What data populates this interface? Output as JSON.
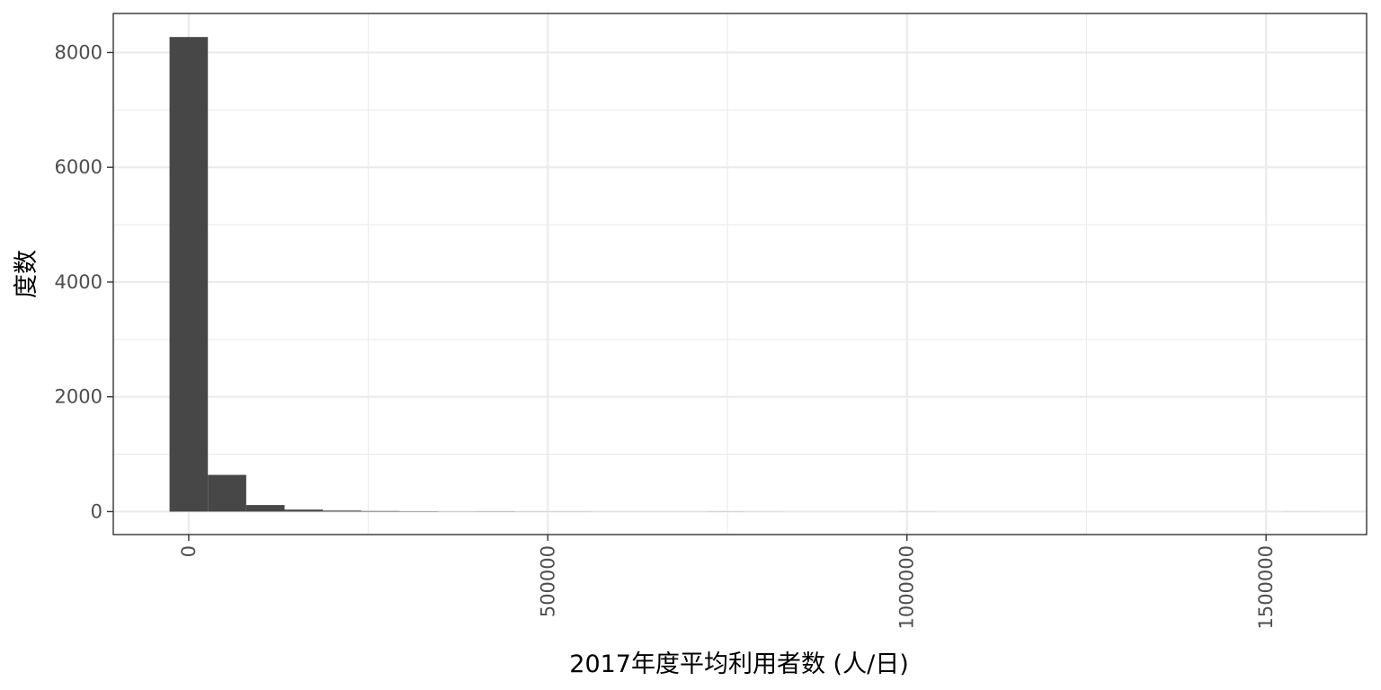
{
  "chart_data": {
    "type": "bar",
    "subtype": "histogram",
    "xlabel": "2017年度平均利用者数 (人/日)",
    "ylabel": "度数",
    "x_ticks": [
      0,
      500000,
      1000000,
      1500000
    ],
    "y_ticks": [
      0,
      2000,
      4000,
      6000,
      8000
    ],
    "xlim": [
      -105000,
      1640000
    ],
    "ylim": [
      -400,
      8680
    ],
    "bin_width": 53400,
    "bins": [
      {
        "start": -26700,
        "end": 26700,
        "count": 8270
      },
      {
        "start": 26700,
        "end": 80100,
        "count": 640
      },
      {
        "start": 80100,
        "end": 133500,
        "count": 115
      },
      {
        "start": 133500,
        "end": 186900,
        "count": 35
      },
      {
        "start": 186900,
        "end": 240300,
        "count": 18
      },
      {
        "start": 240300,
        "end": 293700,
        "count": 10
      },
      {
        "start": 293700,
        "end": 347100,
        "count": 6
      },
      {
        "start": 347100,
        "end": 400500,
        "count": 3
      },
      {
        "start": 400500,
        "end": 453900,
        "count": 4
      },
      {
        "start": 453900,
        "end": 507300,
        "count": 2
      },
      {
        "start": 507300,
        "end": 560700,
        "count": 2
      },
      {
        "start": 560700,
        "end": 614100,
        "count": 1
      },
      {
        "start": 614100,
        "end": 667500,
        "count": 1
      },
      {
        "start": 667500,
        "end": 720900,
        "count": 1
      },
      {
        "start": 720900,
        "end": 774300,
        "count": 2
      },
      {
        "start": 774300,
        "end": 827700,
        "count": 1
      },
      {
        "start": 827700,
        "end": 881100,
        "count": 0
      },
      {
        "start": 881100,
        "end": 934500,
        "count": 0
      },
      {
        "start": 934500,
        "end": 987900,
        "count": 0
      },
      {
        "start": 987900,
        "end": 1041300,
        "count": 1
      },
      {
        "start": 1041300,
        "end": 1094700,
        "count": 0
      },
      {
        "start": 1094700,
        "end": 1148100,
        "count": 0
      },
      {
        "start": 1148100,
        "end": 1201500,
        "count": 0
      },
      {
        "start": 1201500,
        "end": 1254900,
        "count": 0
      },
      {
        "start": 1254900,
        "end": 1308300,
        "count": 0
      },
      {
        "start": 1308300,
        "end": 1361700,
        "count": 0
      },
      {
        "start": 1361700,
        "end": 1415100,
        "count": 0
      },
      {
        "start": 1415100,
        "end": 1468500,
        "count": 0
      },
      {
        "start": 1468500,
        "end": 1521900,
        "count": 0
      },
      {
        "start": 1521900,
        "end": 1575300,
        "count": 1
      }
    ],
    "bar_color": "#474747",
    "grid": true,
    "theme": "bw"
  }
}
